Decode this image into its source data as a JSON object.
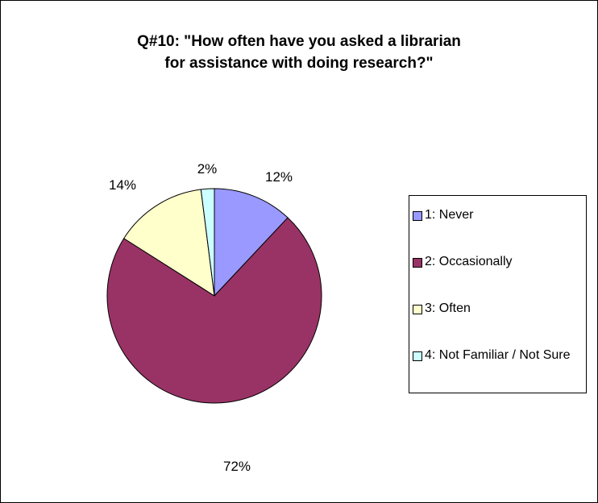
{
  "chart_data": {
    "type": "pie",
    "title_lines": [
      "Q#10:  \"How often have you asked a librarian",
      "for assistance with doing research?\""
    ],
    "categories": [
      "1:  Never",
      "2:  Occasionally",
      "3:  Often",
      "4:  Not Familiar / Not Sure"
    ],
    "values": [
      12,
      72,
      14,
      2
    ],
    "labels": [
      "12%",
      "72%",
      "14%",
      "2%"
    ],
    "colors": [
      "#9999ff",
      "#993366",
      "#ffffcc",
      "#ccffff"
    ],
    "legend_position": "right"
  }
}
